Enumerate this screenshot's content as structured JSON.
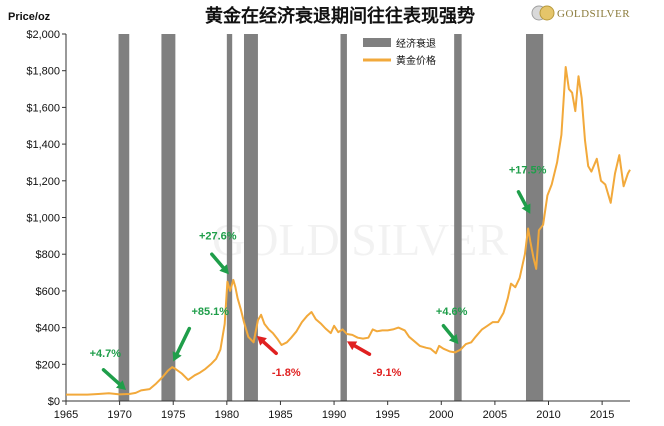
{
  "chart_data": {
    "type": "line",
    "title": "黄金在经济衰退期间往往表现强势",
    "ylabel": "Price/oz",
    "xlabel": "",
    "xlim": [
      1965,
      2017.6
    ],
    "ylim": [
      0,
      2000
    ],
    "x_ticks": [
      1965,
      1970,
      1975,
      1980,
      1985,
      1990,
      1995,
      2000,
      2005,
      2010,
      2015
    ],
    "y_ticks": [
      "$0",
      "$200",
      "$400",
      "$600",
      "$800",
      "$1,000",
      "$1,200",
      "$1,400",
      "$1,600",
      "$1,800",
      "$2,000"
    ],
    "y_tick_values": [
      0,
      200,
      400,
      600,
      800,
      1000,
      1200,
      1400,
      1600,
      1800,
      2000
    ],
    "grid": false,
    "legend_position": "top-center",
    "series": [
      {
        "name": "黄金价格",
        "color": "#F2A93B",
        "points": [
          [
            1965,
            35
          ],
          [
            1966,
            35
          ],
          [
            1967,
            35
          ],
          [
            1968,
            38
          ],
          [
            1969,
            42
          ],
          [
            1970,
            36
          ],
          [
            1970.9,
            38
          ],
          [
            1971.5,
            44
          ],
          [
            1972,
            58
          ],
          [
            1972.8,
            65
          ],
          [
            1973.4,
            95
          ],
          [
            1974,
            130
          ],
          [
            1974.5,
            165
          ],
          [
            1974.9,
            185
          ],
          [
            1975.2,
            175
          ],
          [
            1975.8,
            150
          ],
          [
            1976.4,
            115
          ],
          [
            1977,
            140
          ],
          [
            1977.5,
            155
          ],
          [
            1978,
            175
          ],
          [
            1978.5,
            200
          ],
          [
            1979,
            230
          ],
          [
            1979.4,
            280
          ],
          [
            1979.8,
            420
          ],
          [
            1980.05,
            650
          ],
          [
            1980.3,
            600
          ],
          [
            1980.6,
            660
          ],
          [
            1980.8,
            620
          ],
          [
            1981,
            560
          ],
          [
            1981.3,
            500
          ],
          [
            1981.6,
            430
          ],
          [
            1982,
            350
          ],
          [
            1982.5,
            320
          ],
          [
            1982.9,
            440
          ],
          [
            1983.2,
            470
          ],
          [
            1983.5,
            420
          ],
          [
            1983.9,
            390
          ],
          [
            1984.3,
            370
          ],
          [
            1984.7,
            340
          ],
          [
            1985.1,
            305
          ],
          [
            1985.6,
            320
          ],
          [
            1986,
            345
          ],
          [
            1986.5,
            380
          ],
          [
            1987,
            430
          ],
          [
            1987.5,
            465
          ],
          [
            1987.9,
            485
          ],
          [
            1988.3,
            445
          ],
          [
            1988.8,
            420
          ],
          [
            1989.2,
            395
          ],
          [
            1989.7,
            370
          ],
          [
            1990,
            410
          ],
          [
            1990.4,
            375
          ],
          [
            1990.8,
            390
          ],
          [
            1991.2,
            365
          ],
          [
            1991.7,
            360
          ],
          [
            1992.2,
            345
          ],
          [
            1992.7,
            340
          ],
          [
            1993.2,
            345
          ],
          [
            1993.6,
            390
          ],
          [
            1994,
            380
          ],
          [
            1994.5,
            385
          ],
          [
            1995,
            385
          ],
          [
            1995.5,
            390
          ],
          [
            1996,
            400
          ],
          [
            1996.6,
            385
          ],
          [
            1997,
            350
          ],
          [
            1997.6,
            320
          ],
          [
            1998,
            300
          ],
          [
            1998.6,
            290
          ],
          [
            1999,
            285
          ],
          [
            1999.5,
            260
          ],
          [
            1999.8,
            300
          ],
          [
            2000.2,
            285
          ],
          [
            2000.8,
            270
          ],
          [
            2001.3,
            265
          ],
          [
            2001.8,
            280
          ],
          [
            2002.3,
            310
          ],
          [
            2002.8,
            320
          ],
          [
            2003.2,
            350
          ],
          [
            2003.8,
            390
          ],
          [
            2004.3,
            410
          ],
          [
            2004.8,
            430
          ],
          [
            2005.3,
            430
          ],
          [
            2005.8,
            480
          ],
          [
            2006.2,
            560
          ],
          [
            2006.5,
            640
          ],
          [
            2006.9,
            620
          ],
          [
            2007.3,
            670
          ],
          [
            2007.8,
            800
          ],
          [
            2008.1,
            940
          ],
          [
            2008.3,
            870
          ],
          [
            2008.6,
            780
          ],
          [
            2008.85,
            720
          ],
          [
            2009.1,
            930
          ],
          [
            2009.5,
            960
          ],
          [
            2009.9,
            1120
          ],
          [
            2010.3,
            1180
          ],
          [
            2010.8,
            1300
          ],
          [
            2011.2,
            1450
          ],
          [
            2011.6,
            1820
          ],
          [
            2011.9,
            1700
          ],
          [
            2012.2,
            1680
          ],
          [
            2012.5,
            1580
          ],
          [
            2012.8,
            1770
          ],
          [
            2013.1,
            1650
          ],
          [
            2013.4,
            1420
          ],
          [
            2013.7,
            1280
          ],
          [
            2014,
            1250
          ],
          [
            2014.5,
            1320
          ],
          [
            2014.9,
            1200
          ],
          [
            2015.3,
            1180
          ],
          [
            2015.8,
            1080
          ],
          [
            2016.2,
            1240
          ],
          [
            2016.6,
            1340
          ],
          [
            2017,
            1170
          ],
          [
            2017.4,
            1240
          ],
          [
            2017.6,
            1260
          ]
        ]
      }
    ],
    "recessions": {
      "name": "经济衰退",
      "color": "#808080",
      "periods": [
        [
          1969.9,
          1970.9
        ],
        [
          1973.9,
          1975.2
        ],
        [
          1980.0,
          1980.5
        ],
        [
          1981.6,
          1982.9
        ],
        [
          1990.6,
          1991.2
        ],
        [
          2001.2,
          2001.9
        ],
        [
          2007.9,
          2009.5
        ]
      ]
    },
    "annotations": [
      {
        "text": "+4.7%",
        "color": "#1F9E4A",
        "text_x": 1967.2,
        "text_y": 240,
        "arrow_from": [
          1968.5,
          170
        ],
        "arrow_to": [
          1970.6,
          60
        ]
      },
      {
        "text": "+85.1%",
        "color": "#1F9E4A",
        "text_x": 1976.7,
        "text_y": 470,
        "arrow_from": [
          1976.5,
          395
        ],
        "arrow_to": [
          1975.0,
          215
        ]
      },
      {
        "text": "+27.6%",
        "color": "#1F9E4A",
        "text_x": 1977.4,
        "text_y": 880,
        "arrow_from": [
          1978.6,
          800
        ],
        "arrow_to": [
          1980.2,
          690
        ]
      },
      {
        "text": "-1.8%",
        "color": "#E02020",
        "text_x": 1984.2,
        "text_y": 135,
        "arrow_from": [
          1984.6,
          260
        ],
        "arrow_to": [
          1982.8,
          355
        ]
      },
      {
        "text": "-9.1%",
        "color": "#E02020",
        "text_x": 1993.6,
        "text_y": 135,
        "arrow_from": [
          1993.3,
          255
        ],
        "arrow_to": [
          1991.2,
          325
        ]
      },
      {
        "text": "+4.6%",
        "color": "#1F9E4A",
        "text_x": 1999.5,
        "text_y": 470,
        "arrow_from": [
          2000.2,
          410
        ],
        "arrow_to": [
          2001.6,
          310
        ]
      },
      {
        "text": "+17.5%",
        "color": "#1F9E4A",
        "text_x": 2006.3,
        "text_y": 1240,
        "arrow_from": [
          2007.2,
          1140
        ],
        "arrow_to": [
          2008.3,
          1020
        ]
      }
    ]
  },
  "logo": {
    "text": "GOLDSILVER"
  },
  "watermark": {
    "text": "GOLD SILVER"
  },
  "colors": {
    "gold": "#F2A93B",
    "recession": "#808080",
    "up": "#1F9E4A",
    "down": "#E02020",
    "logo": "#8a7a3a"
  }
}
